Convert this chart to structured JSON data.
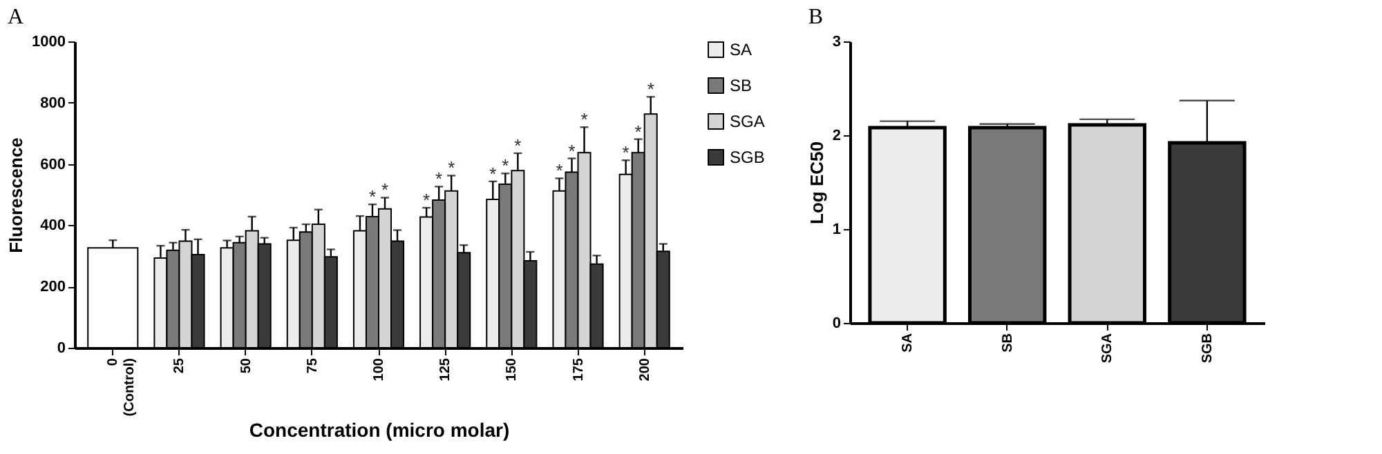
{
  "chart_data": [
    {
      "type": "bar",
      "title": "A",
      "xlabel": "Concentration (micro molar)",
      "ylabel": "Fluorescence",
      "categories": [
        "0 (Control)",
        "25",
        "50",
        "75",
        "100",
        "125",
        "150",
        "175",
        "200"
      ],
      "series": [
        {
          "color": "#ffffff",
          "values": [
            326,
            null,
            null,
            null,
            null,
            null,
            null,
            null,
            null
          ],
          "errors": [
            25,
            null,
            null,
            null,
            null,
            null,
            null,
            null,
            null
          ]
        },
        {
          "name": "SA",
          "color": "#ececec",
          "values": [
            null,
            293,
            326,
            351,
            382,
            427,
            484,
            512,
            566
          ],
          "errors": [
            null,
            40,
            24,
            41,
            48,
            30,
            59,
            41,
            46
          ]
        },
        {
          "name": "SB",
          "color": "#7a7a7a",
          "values": [
            null,
            318,
            343,
            378,
            428,
            482,
            534,
            573,
            637
          ],
          "errors": [
            null,
            25,
            20,
            25,
            40,
            44,
            35,
            45,
            44
          ]
        },
        {
          "name": "SGA",
          "color": "#d4d4d4",
          "values": [
            null,
            348,
            382,
            403,
            453,
            512,
            578,
            637,
            763
          ],
          "errors": [
            null,
            37,
            46,
            48,
            37,
            50,
            57,
            83,
            56
          ]
        },
        {
          "name": "SGB",
          "color": "#3a3a3a",
          "values": [
            null,
            304,
            339,
            297,
            348,
            310,
            284,
            273,
            315
          ],
          "errors": [
            null,
            50,
            20,
            24,
            36,
            25,
            29,
            28,
            24
          ]
        }
      ],
      "ylim": [
        0,
        1000
      ],
      "yticks": [
        0,
        200,
        400,
        600,
        800,
        1000
      ],
      "legend": "top right",
      "annotations": [
        {
          "text": "*",
          "x": "100",
          "y": 468
        },
        {
          "text": "*",
          "x": "100",
          "y": 490
        },
        {
          "text": "*",
          "x": "125",
          "y": 457
        },
        {
          "text": "*",
          "x": "125",
          "y": 526
        },
        {
          "text": "*",
          "x": "125",
          "y": 562
        },
        {
          "text": "*",
          "x": "150",
          "y": 543
        },
        {
          "text": "*",
          "x": "150",
          "y": 569
        },
        {
          "text": "*",
          "x": "150",
          "y": 635
        },
        {
          "text": "*",
          "x": "175",
          "y": 553
        },
        {
          "text": "*",
          "x": "175",
          "y": 618
        },
        {
          "text": "*",
          "x": "175",
          "y": 720
        },
        {
          "text": "*",
          "x": "200",
          "y": 612
        },
        {
          "text": "*",
          "x": "200",
          "y": 681
        },
        {
          "text": "*",
          "x": "200",
          "y": 819
        }
      ]
    },
    {
      "type": "bar",
      "title": "B",
      "ylabel": "Log EC50",
      "categories": [
        "SA",
        "SB",
        "SGA",
        "SGB"
      ],
      "values": [
        2.08,
        2.08,
        2.11,
        1.92
      ],
      "errors": [
        0.07,
        0.04,
        0.06,
        0.45
      ],
      "colors": [
        "#ececec",
        "#7a7a7a",
        "#d4d4d4",
        "#3a3a3a"
      ],
      "ylim": [
        0,
        3
      ],
      "yticks": [
        0,
        1,
        2,
        3
      ]
    }
  ]
}
